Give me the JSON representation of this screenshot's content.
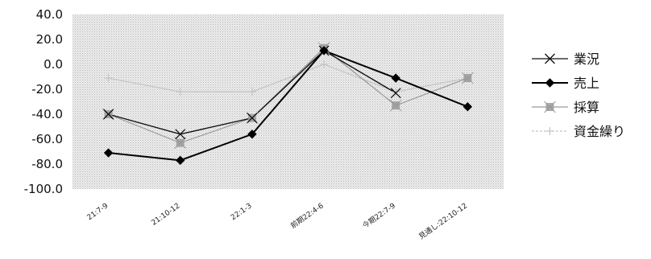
{
  "chart_data": {
    "type": "line",
    "title": "",
    "xlabel": "",
    "ylabel": "",
    "categories": [
      "21:7-9",
      "21:10-12",
      "22:1-3",
      "前期22:4-6",
      "今期22:7-9",
      "見通し:22:10-12"
    ],
    "yticks": [
      "40.0",
      "20.0",
      "0.0",
      "-20.0",
      "-40.0",
      "-60.0",
      "-80.0",
      "-100.0"
    ],
    "ylim": [
      -100,
      40
    ],
    "grid": false,
    "plot_background": "#e6e6e6",
    "legend_position": "right",
    "series": [
      {
        "name": "業況",
        "values": [
          -40,
          -56,
          -43,
          11,
          -23,
          null
        ],
        "color": "#111111",
        "marker": "x"
      },
      {
        "name": "売上",
        "values": [
          -71,
          -77,
          -56,
          11,
          -11,
          -34
        ],
        "color": "#000000",
        "marker": "diamond"
      },
      {
        "name": "採算",
        "values": [
          -40,
          -63,
          -43,
          13,
          -33,
          -11
        ],
        "color": "#9a9a9a",
        "marker": "square"
      },
      {
        "name": "資金繰り",
        "values": [
          -11,
          -22,
          -22,
          0,
          -22,
          -11
        ],
        "color": "#c4c4c4",
        "marker": "plus"
      }
    ]
  }
}
